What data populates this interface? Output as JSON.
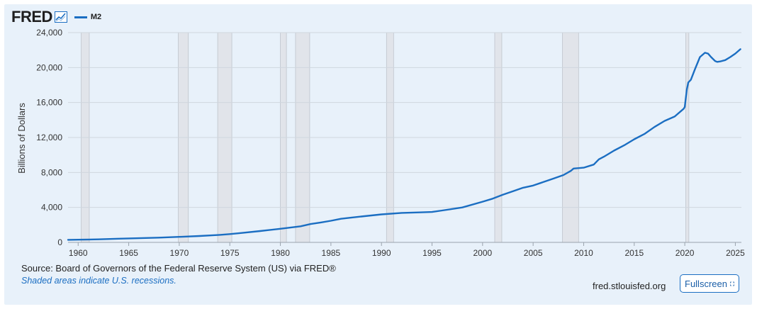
{
  "brand": {
    "logo_text": "FRED",
    "logo_icon": "line-chart-icon"
  },
  "footer": {
    "source": "Source: Board of Governors of the Federal Reserve System (US) via FRED®",
    "note": "Shaded areas indicate U.S. recessions.",
    "site": "fred.stlouisfed.org",
    "fullscreen_label": "Fullscreen",
    "fullscreen_icon": "expand-icon"
  },
  "colors": {
    "line": "#1b6ec2",
    "recession": "#e1e4ea",
    "background": "#e8f1fa",
    "grid": "#cfd6de"
  },
  "chart_data": {
    "type": "line",
    "title": "",
    "xlabel": "",
    "ylabel": "Billions of Dollars",
    "xlim": [
      1959,
      2025.6
    ],
    "ylim": [
      0,
      24000
    ],
    "yticks": [
      0,
      4000,
      8000,
      12000,
      16000,
      20000,
      24000
    ],
    "ytick_labels": [
      "0",
      "4,000",
      "8,000",
      "12,000",
      "16,000",
      "20,000",
      "24,000"
    ],
    "xticks": [
      1960,
      1965,
      1970,
      1975,
      1980,
      1985,
      1990,
      1995,
      2000,
      2005,
      2010,
      2015,
      2020,
      2025
    ],
    "grid": true,
    "legend": "top-left",
    "recessions": [
      [
        1960.3,
        1961.1
      ],
      [
        1969.9,
        1970.9
      ],
      [
        1973.8,
        1975.2
      ],
      [
        1980.0,
        1980.6
      ],
      [
        1981.5,
        1982.9
      ],
      [
        1990.5,
        1991.2
      ],
      [
        2001.2,
        2001.9
      ],
      [
        2007.9,
        2009.5
      ],
      [
        2020.1,
        2020.4
      ]
    ],
    "series": [
      {
        "name": "M2",
        "x": [
          1959,
          1960,
          1962,
          1964,
          1966,
          1968,
          1970,
          1972,
          1974,
          1975,
          1976,
          1978,
          1980,
          1982,
          1983,
          1984,
          1985,
          1986,
          1987,
          1988,
          1990,
          1992,
          1994,
          1995,
          1996,
          1998,
          2000,
          2001,
          2002,
          2003,
          2004,
          2005,
          2006,
          2007,
          2008,
          2008.75,
          2009,
          2010,
          2011,
          2011.5,
          2012,
          2013,
          2014,
          2015,
          2016,
          2017,
          2018,
          2019,
          2019.9,
          2020.0,
          2020.2,
          2020.35,
          2020.6,
          2021,
          2021.5,
          2022.0,
          2022.3,
          2022.6,
          2023.0,
          2023.2,
          2023.5,
          2024.0,
          2024.5,
          2025.0,
          2025.5
        ],
        "y": [
          290,
          310,
          350,
          420,
          480,
          540,
          630,
          730,
          860,
          950,
          1060,
          1300,
          1560,
          1840,
          2100,
          2280,
          2470,
          2700,
          2830,
          2960,
          3200,
          3370,
          3440,
          3480,
          3650,
          4000,
          4650,
          5000,
          5450,
          5850,
          6250,
          6500,
          6900,
          7300,
          7700,
          8200,
          8450,
          8550,
          8900,
          9500,
          9800,
          10500,
          11100,
          11800,
          12400,
          13200,
          13900,
          14400,
          15300,
          15500,
          17500,
          18300,
          18600,
          19800,
          21200,
          21700,
          21600,
          21200,
          20750,
          20650,
          20700,
          20850,
          21200,
          21600,
          22100
        ]
      }
    ]
  }
}
